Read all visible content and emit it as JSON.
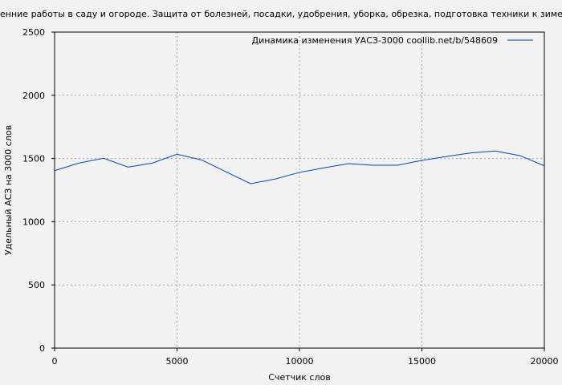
{
  "chart_data": {
    "type": "line",
    "title": "енние работы в саду и огороде. Защита от болезней, посадки, удобрения, уборка, обрезка, подготовка техники к зиме... (Ан",
    "xlabel": "Счетчик слов",
    "ylabel": "Удельный АСЗ на 3000 слов",
    "xlim": [
      0,
      20000
    ],
    "ylim": [
      0,
      2500
    ],
    "xticks": [
      "0",
      "5000",
      "10000",
      "15000",
      "20000"
    ],
    "yticks": [
      "0",
      "500",
      "1000",
      "1500",
      "2000",
      "2500"
    ],
    "grid": true,
    "legend_position": "top-right",
    "colors": {
      "series": "#0047bb",
      "background": "#f2f2f2",
      "grid": "#a0a0a0"
    },
    "series": [
      {
        "name": "Динамика изменения УАСЗ-3000  coollib.net/b/548609",
        "x": [
          0,
          1000,
          2000,
          3000,
          4000,
          5000,
          6000,
          7000,
          8000,
          9000,
          10000,
          11000,
          12000,
          13000,
          14000,
          15000,
          16000,
          17000,
          18000,
          19000,
          20000
        ],
        "y": [
          1404,
          1464,
          1502,
          1432,
          1464,
          1534,
          1489,
          1395,
          1301,
          1337,
          1390,
          1426,
          1459,
          1447,
          1447,
          1485,
          1516,
          1544,
          1559,
          1523,
          1442
        ]
      }
    ]
  }
}
